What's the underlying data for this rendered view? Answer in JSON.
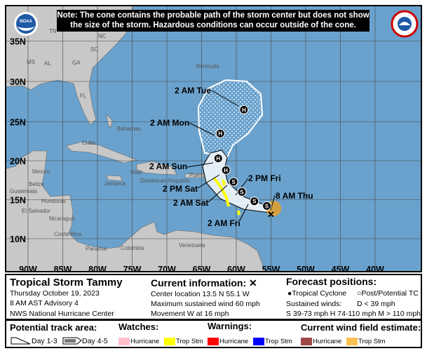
{
  "note": "Note: The cone contains the probable path of the storm center but does not show the size of the storm. Hazardous conditions can occur outside of the cone.",
  "logos": {
    "left": "NOAA",
    "right": "National Weather Service"
  },
  "map": {
    "lat_labels": [
      "35N",
      "30N",
      "25N",
      "20N",
      "15N",
      "10N"
    ],
    "lon_labels": [
      "90W",
      "85W",
      "80W",
      "75W",
      "70W",
      "65W",
      "60W",
      "55W",
      "50W",
      "45W",
      "40W"
    ],
    "places": [
      "TN",
      "NC",
      "SC",
      "MS",
      "AL",
      "GA",
      "FL",
      "Bermuda",
      "Bahamas",
      "Cuba",
      "Mexico",
      "Belize",
      "Guatemala",
      "Honduras",
      "El Salvador",
      "Nicaragua",
      "Costa Rica",
      "Panama",
      "Colombia",
      "Venezuela",
      "Jamaica",
      "Dominican Republic",
      "Haiti",
      "Puerto Rico"
    ],
    "forecast_labels": [
      "2 AM Tue",
      "2 AM Mon",
      "2 AM Sun",
      "2 PM Sat",
      "2 AM Sat",
      "2 PM Fri",
      "8 AM Thu",
      "2 AM Fri"
    ],
    "points": [
      {
        "type": "H",
        "lat": 26.5,
        "lon": -58.9
      },
      {
        "type": "H",
        "lat": 23.5,
        "lon": -62.3
      },
      {
        "type": "H",
        "lat": 20.3,
        "lon": -62.6
      },
      {
        "type": "H",
        "lat": 18.8,
        "lon": -61.5
      },
      {
        "type": "S",
        "lat": 17.3,
        "lon": -60.4
      },
      {
        "type": "S",
        "lat": 16.0,
        "lon": -59.2
      },
      {
        "type": "S",
        "lat": 14.8,
        "lon": -57.4
      },
      {
        "type": "S",
        "lat": 14.2,
        "lon": -55.6
      }
    ],
    "current": {
      "lat": 13.5,
      "lon": -55.1
    },
    "colors": {
      "ocean": "#6aa2cd",
      "land": "#c8c8c8",
      "cone": "#e4eef6",
      "trop_storm_watch": "#ffff00",
      "trop_storm_wind": "#f3b13f"
    }
  },
  "storm": {
    "title": "Tropical Storm Tammy",
    "date": "Thursday October 19, 2023",
    "advisory": "8 AM AST Advisory 4",
    "center": "NWS National Hurricane Center"
  },
  "current_info": {
    "title": "Current information:",
    "marker": "✕",
    "location": "Center location 13.5 N 55.1 W",
    "wind": "Maximum sustained wind 60 mph",
    "movement": "Movement W at 16 mph"
  },
  "forecast": {
    "title": "Forecast positions:",
    "tc": "Tropical Cyclone",
    "ptc": "Post/Potential TC",
    "winds_label": "Sustained winds:",
    "d": "D < 39 mph",
    "s": "S 39-73 mph",
    "h": "H 74-110 mph",
    "m": "M > 110 mph"
  },
  "legend": {
    "track_title": "Potential track area:",
    "day13": "Day 1-3",
    "day45": "Day 4-5",
    "watches_title": "Watches:",
    "warnings_title": "Warnings:",
    "wind_title": "Current wind field estimate:",
    "hurricane": "Hurricane",
    "trop_stm": "Trop Stm",
    "colors": {
      "hurricane_watch": "#ffc0cb",
      "ts_watch": "#ffff00",
      "hurricane_warning": "#ff0000",
      "ts_warning": "#0000ff",
      "hurricane_wind": "#a04848",
      "ts_wind": "#f9c050"
    }
  }
}
